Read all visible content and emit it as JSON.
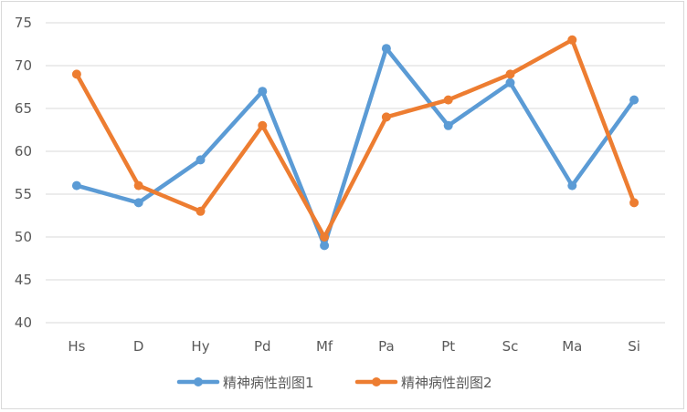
{
  "chart_data": {
    "type": "line",
    "categories": [
      "Hs",
      "D",
      "Hy",
      "Pd",
      "Mf",
      "Pa",
      "Pt",
      "Sc",
      "Ma",
      "Si"
    ],
    "series": [
      {
        "name": "精神病性剖图1",
        "color": "#5b9bd5",
        "values": [
          56,
          54,
          59,
          67,
          49,
          72,
          63,
          68,
          56,
          66
        ]
      },
      {
        "name": "精神病性剖图2",
        "color": "#ed7d31",
        "values": [
          69,
          56,
          53,
          63,
          50,
          64,
          66,
          69,
          73,
          54
        ]
      }
    ],
    "title": "",
    "xlabel": "",
    "ylabel": "",
    "ylim": [
      40,
      75
    ],
    "yticks": [
      40,
      45,
      50,
      55,
      60,
      65,
      70,
      75
    ],
    "grid": true,
    "legend": "bottom"
  }
}
